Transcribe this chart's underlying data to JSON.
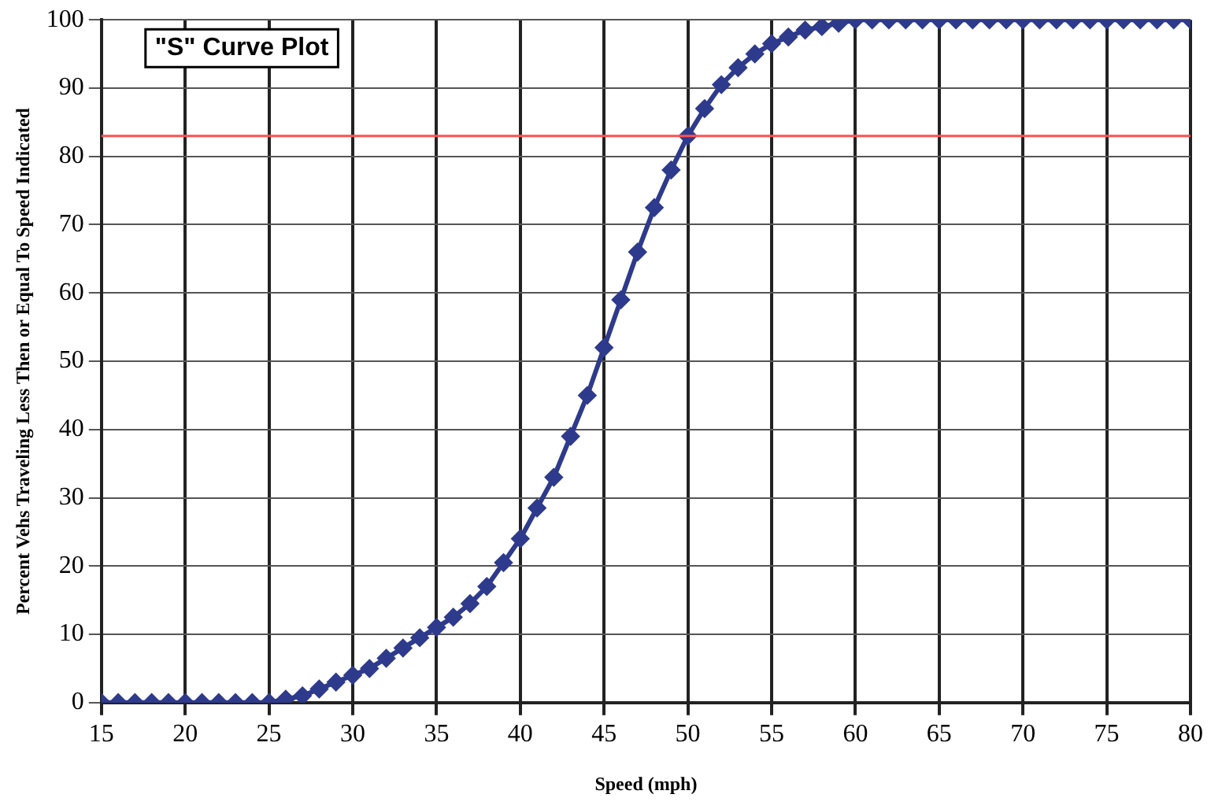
{
  "chart_data": {
    "type": "line",
    "title": "\"S\" Curve Plot",
    "xlabel": "Speed (mph)",
    "ylabel": "Percent Vehs Traveling Less Then or Equal To Speed Indicated",
    "x": [
      15,
      16,
      17,
      18,
      19,
      20,
      21,
      22,
      23,
      24,
      25,
      26,
      27,
      28,
      29,
      30,
      31,
      32,
      33,
      34,
      35,
      36,
      37,
      38,
      39,
      40,
      41,
      42,
      43,
      44,
      45,
      46,
      47,
      48,
      49,
      50,
      51,
      52,
      53,
      54,
      55,
      56,
      57,
      58,
      59,
      60,
      61,
      62,
      63,
      64,
      65,
      66,
      67,
      68,
      69,
      70,
      71,
      72,
      73,
      74,
      75,
      76,
      77,
      78,
      79,
      80
    ],
    "series": [
      {
        "color": "#2e3a8c",
        "values": [
          0,
          0,
          0,
          0,
          0,
          0,
          0,
          0,
          0,
          0,
          0,
          0.5,
          1,
          2,
          3,
          4,
          5,
          6.5,
          8,
          9.5,
          11,
          12.5,
          14.5,
          17,
          20.5,
          24,
          28.5,
          33,
          39,
          45,
          52,
          59,
          66,
          72.5,
          78,
          83,
          87,
          90.5,
          93,
          95,
          96.5,
          97.5,
          98.5,
          99,
          99.5,
          100,
          100,
          100,
          100,
          100,
          100,
          100,
          100,
          100,
          100,
          100,
          100,
          100,
          100,
          100,
          100,
          100,
          100,
          100,
          100,
          100
        ]
      }
    ],
    "xlim": [
      15,
      80
    ],
    "xticks": [
      15,
      20,
      25,
      30,
      35,
      40,
      45,
      50,
      55,
      60,
      65,
      70,
      75,
      80
    ],
    "ylim": [
      0,
      100
    ],
    "yticks": [
      0,
      10,
      20,
      30,
      40,
      50,
      60,
      70,
      80,
      90,
      100
    ],
    "ref_lines": [
      {
        "axis": "y",
        "value": 83,
        "color": "#ff5050"
      }
    ],
    "grid": true,
    "legend": false,
    "marker": "diamond",
    "line_style": "solid"
  }
}
